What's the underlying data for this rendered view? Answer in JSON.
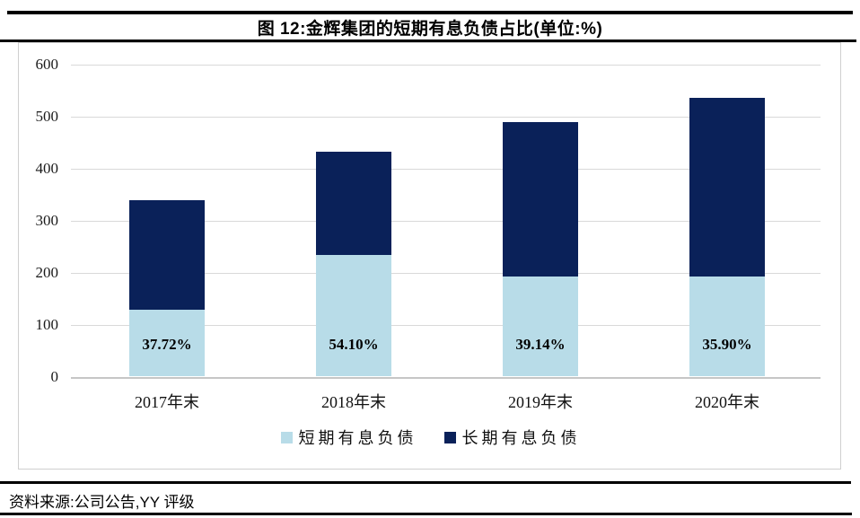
{
  "title": "图 12:金辉集团的短期有息负债占比(单位:%)",
  "footer": {
    "source_label": "资料来源:公司公告,YY 评级"
  },
  "colors": {
    "short_term": "#b8dce8",
    "long_term": "#0a2159",
    "gridline": "#d9d9d9",
    "rule": "#000000"
  },
  "chart_data": {
    "type": "bar",
    "stacked": true,
    "title": "图 12:金辉集团的短期有息负债占比(单位:%)",
    "categories": [
      "2017年末",
      "2018年末",
      "2019年末",
      "2020年末"
    ],
    "series": [
      {
        "name": "短期有息负债",
        "color": "#b8dce8",
        "values": [
          128,
          234,
          192,
          193
        ]
      },
      {
        "name": "长期有息负债",
        "color": "#0a2159",
        "values": [
          212,
          198,
          298,
          344
        ]
      }
    ],
    "totals": [
      340,
      432,
      490,
      537
    ],
    "bar_labels": [
      "37.72%",
      "54.10%",
      "39.14%",
      "35.90%"
    ],
    "bar_labels_meaning": "短期有息负债占比",
    "xlabel": "",
    "ylabel": "",
    "ylim": [
      0,
      600
    ],
    "yticks": [
      0,
      100,
      200,
      300,
      400,
      500,
      600
    ],
    "grid": true,
    "legend_position": "bottom"
  }
}
